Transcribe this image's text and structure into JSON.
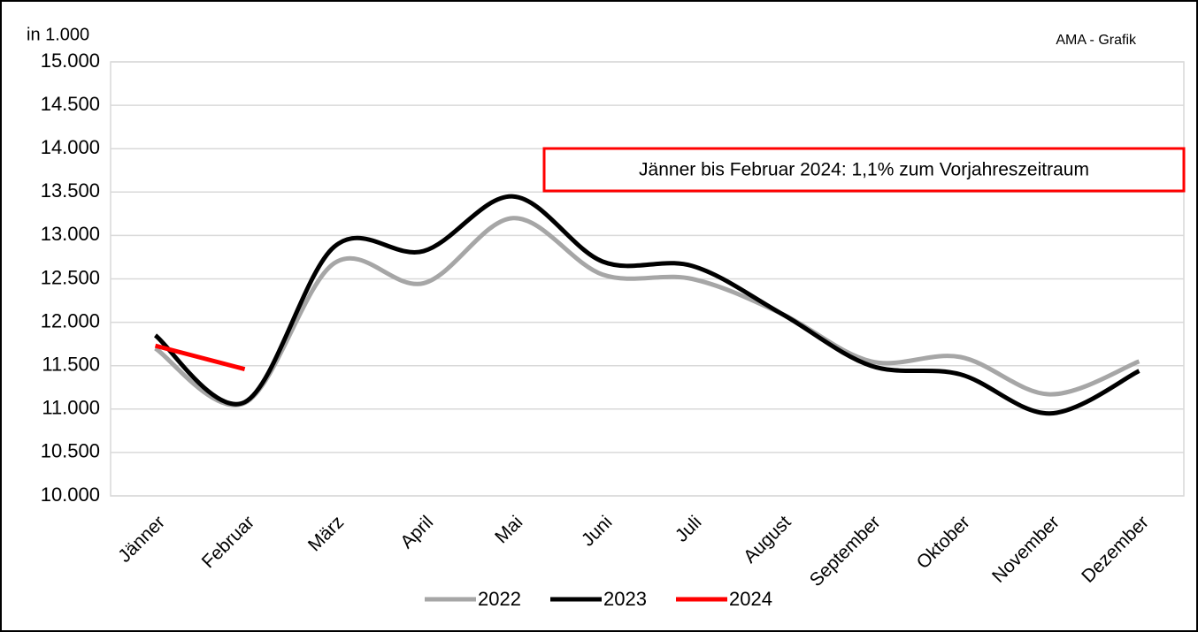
{
  "chart_data": {
    "type": "line",
    "y_label": "in 1.000",
    "source": "AMA - Grafik",
    "annotation": "Jänner bis Februar 2024: 1,1% zum Vorjahreszeitraum",
    "categories": [
      "Jänner",
      "Februar",
      "März",
      "April",
      "Mai",
      "Juni",
      "Juli",
      "August",
      "September",
      "Oktober",
      "November",
      "Dezember"
    ],
    "series": [
      {
        "name": "2022",
        "color": "#a6a6a6",
        "values": [
          11700,
          11070,
          12680,
          12450,
          13200,
          12550,
          12500,
          12100,
          11550,
          11600,
          11170,
          11550
        ]
      },
      {
        "name": "2023",
        "color": "#000000",
        "values": [
          11850,
          11080,
          12870,
          12820,
          13450,
          12700,
          12650,
          12100,
          11500,
          11400,
          10950,
          11440
        ]
      },
      {
        "name": "2024",
        "color": "#ff0000",
        "values": [
          11730,
          11460,
          null,
          null,
          null,
          null,
          null,
          null,
          null,
          null,
          null,
          null
        ]
      }
    ],
    "ylim": [
      10000,
      15000
    ],
    "yticks": [
      {
        "value": 10000,
        "label": "10.000"
      },
      {
        "value": 10500,
        "label": "10.500"
      },
      {
        "value": 11000,
        "label": "11.000"
      },
      {
        "value": 11500,
        "label": "11.500"
      },
      {
        "value": 12000,
        "label": "12.000"
      },
      {
        "value": 12500,
        "label": "12.500"
      },
      {
        "value": 13000,
        "label": "13.000"
      },
      {
        "value": 13500,
        "label": "13.500"
      },
      {
        "value": 14000,
        "label": "14.000"
      },
      {
        "value": 14500,
        "label": "14.500"
      },
      {
        "value": 15000,
        "label": "15.000"
      }
    ],
    "grid": true,
    "smooth": true,
    "legend": "bottom"
  }
}
